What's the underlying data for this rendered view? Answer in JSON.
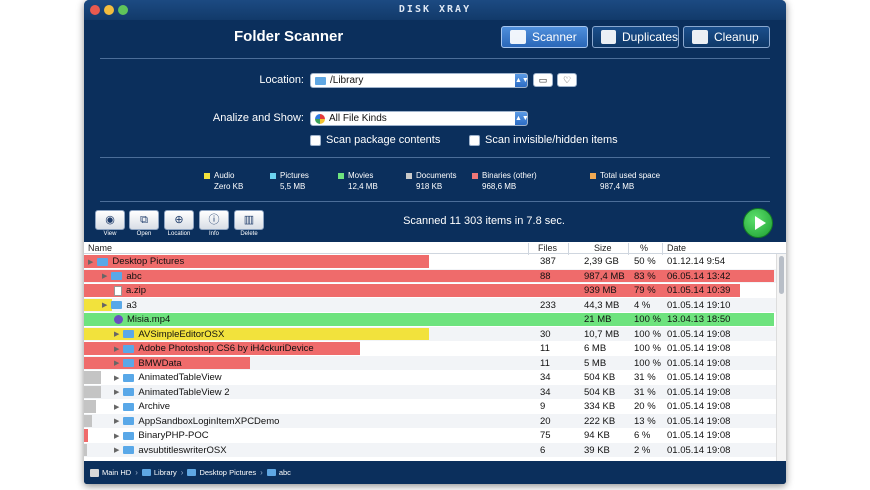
{
  "app_title": "DISK XRAY",
  "heading": "Folder Scanner",
  "modes": {
    "scanner": "Scanner",
    "duplicates": "Duplicates",
    "cleanup": "Cleanup"
  },
  "location": {
    "label": "Location:",
    "value": "/Library"
  },
  "analyze": {
    "label": "Analize and Show:",
    "value": "All File Kinds"
  },
  "options": {
    "scan_package": "Scan package contents",
    "scan_hidden": "Scan invisible/hidden items"
  },
  "legend": [
    {
      "name": "Audio",
      "value": "Zero KB",
      "color": "#f2e23c"
    },
    {
      "name": "Pictures",
      "value": "5,5 MB",
      "color": "#6cd3f0"
    },
    {
      "name": "Movies",
      "value": "12,4 MB",
      "color": "#6ee37e"
    },
    {
      "name": "Documents",
      "value": "918 KB",
      "color": "#c9c9c9"
    },
    {
      "name": "Binaries (other)",
      "value": "968,6 MB",
      "color": "#ef7777"
    },
    {
      "name": "Total used space",
      "value": "987,4 MB",
      "color": "#f1a953"
    }
  ],
  "toolbar": {
    "view": "View",
    "open": "Open",
    "location": "Location",
    "info": "Info",
    "delete": "Delete"
  },
  "scan_status": "Scanned 11 303 items in 7.8 sec.",
  "table": {
    "columns": {
      "name": "Name",
      "files": "Files",
      "size": "Size",
      "percent": "%",
      "date": "Date"
    },
    "rows": [
      {
        "name": "Desktop Pictures",
        "files": "387",
        "size": "2,39 GB",
        "percent": "50 %",
        "date": "01.12.14 9:54",
        "fill": 0.5,
        "color": "#ef6b6b",
        "icon": "folder"
      },
      {
        "name": "abc",
        "files": "88",
        "size": "987,4 MB",
        "percent": "83 %",
        "date": "06.05.14 13:42",
        "fill": 1.0,
        "color": "#ef6b6b",
        "icon": "folder",
        "selected": true
      },
      {
        "name": "a.zip",
        "files": "",
        "size": "939 MB",
        "percent": "79 %",
        "date": "01.05.14 10:39",
        "fill": 0.95,
        "color": "#ef6b6b",
        "icon": "file"
      },
      {
        "name": "a3",
        "files": "233",
        "size": "44,3 MB",
        "percent": "4 %",
        "date": "01.05.14 19:10",
        "fill": 0.04,
        "color": "#f2e23c",
        "icon": "folder"
      },
      {
        "name": "Misia.mp4",
        "files": "",
        "size": "21 MB",
        "percent": "100 %",
        "date": "13.04.13 18:50",
        "fill": 1.0,
        "color": "#6ee37e",
        "icon": "movie"
      },
      {
        "name": "AVSimpleEditorOSX",
        "files": "30",
        "size": "10,7 MB",
        "percent": "100 %",
        "date": "01.05.14 19:08",
        "fill": 0.5,
        "color": "#f2e23c",
        "icon": "folder"
      },
      {
        "name": "Adobe Photoshop CS6 by iH4ckuriDevice",
        "files": "11",
        "size": "6 MB",
        "percent": "100 %",
        "date": "01.05.14 19:08",
        "fill": 0.4,
        "color": "#ef6b6b",
        "icon": "folder"
      },
      {
        "name": "BMWData",
        "files": "11",
        "size": "5 MB",
        "percent": "100 %",
        "date": "01.05.14 19:08",
        "fill": 0.24,
        "color": "#ef6b6b",
        "icon": "folder"
      },
      {
        "name": "AnimatedTableView",
        "files": "34",
        "size": "504 KB",
        "percent": "31 %",
        "date": "01.05.14 19:08",
        "fill": 0.025,
        "color": "#c4c4c4",
        "icon": "folder"
      },
      {
        "name": "AnimatedTableView 2",
        "files": "34",
        "size": "504 KB",
        "percent": "31 %",
        "date": "01.05.14 19:08",
        "fill": 0.025,
        "color": "#c4c4c4",
        "icon": "folder"
      },
      {
        "name": "Archive",
        "files": "9",
        "size": "334 KB",
        "percent": "20 %",
        "date": "01.05.14 19:08",
        "fill": 0.018,
        "color": "#c4c4c4",
        "icon": "folder"
      },
      {
        "name": "AppSandboxLoginItemXPCDemo",
        "files": "20",
        "size": "222 KB",
        "percent": "13 %",
        "date": "01.05.14 19:08",
        "fill": 0.012,
        "color": "#c4c4c4",
        "icon": "folder"
      },
      {
        "name": "BinaryPHP-POC",
        "files": "75",
        "size": "94 KB",
        "percent": "6 %",
        "date": "01.05.14 19:08",
        "fill": 0.006,
        "color": "#ef6b6b",
        "icon": "folder"
      },
      {
        "name": "avsubtitleswriterOSX",
        "files": "6",
        "size": "39 KB",
        "percent": "2 %",
        "date": "01.05.14 19:08",
        "fill": 0.003,
        "color": "#c4c4c4",
        "icon": "folder"
      }
    ]
  },
  "breadcrumb": [
    "Main HD",
    "Library",
    "Desktop Pictures",
    "abc"
  ]
}
